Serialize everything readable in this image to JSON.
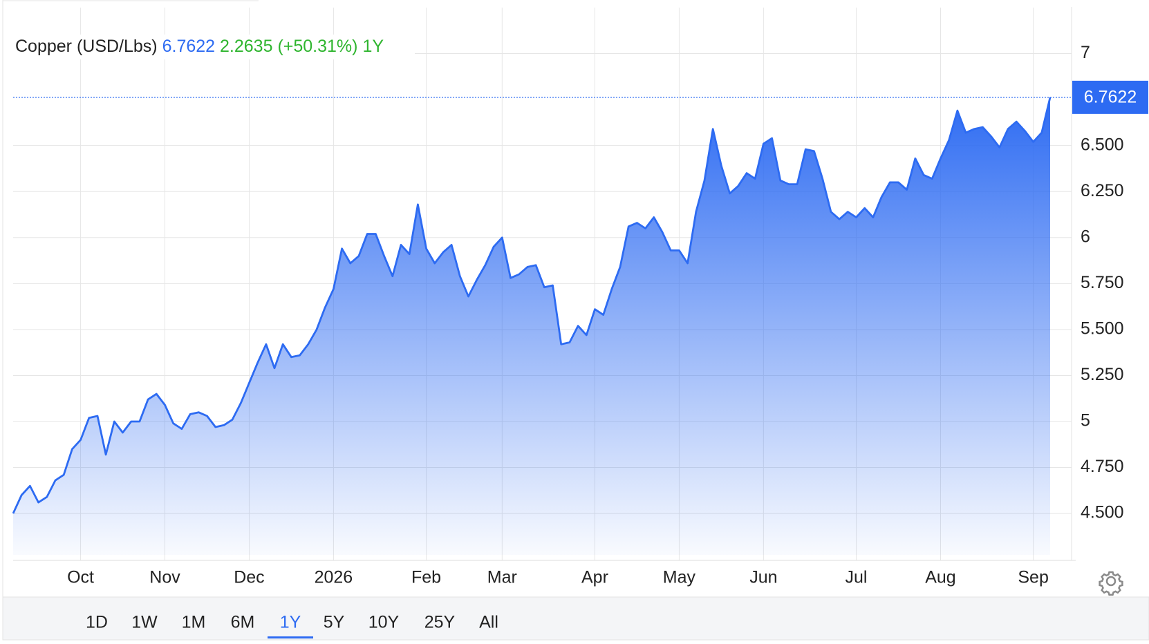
{
  "chart_data": {
    "type": "line",
    "title": "Copper (USD/Lbs)",
    "price_label": "6.7622",
    "change_label": "2.2635",
    "change_pct_label": "(+50.31%)",
    "period_label": "1Y",
    "categories": [
      null,
      null,
      null,
      null,
      null,
      null,
      null,
      null,
      "Oct",
      null,
      null,
      null,
      null,
      null,
      null,
      null,
      null,
      null,
      "Nov",
      null,
      null,
      null,
      null,
      null,
      null,
      null,
      null,
      null,
      "Dec",
      null,
      null,
      null,
      null,
      null,
      null,
      null,
      null,
      null,
      "2026",
      null,
      null,
      null,
      null,
      null,
      null,
      null,
      null,
      null,
      null,
      "Feb",
      null,
      null,
      null,
      null,
      null,
      null,
      null,
      null,
      "Mar",
      null,
      null,
      null,
      null,
      null,
      null,
      null,
      null,
      null,
      null,
      "Apr",
      null,
      null,
      null,
      null,
      null,
      null,
      null,
      null,
      null,
      "May",
      null,
      null,
      null,
      null,
      null,
      null,
      null,
      null,
      null,
      "Jun",
      null,
      null,
      null,
      null,
      null,
      null,
      null,
      null,
      null,
      null,
      "Jul",
      null,
      null,
      null,
      null,
      null,
      null,
      null,
      null,
      null,
      "Aug",
      null,
      null,
      null,
      null,
      null,
      null,
      null,
      null,
      null,
      null,
      "Sep",
      null,
      null
    ],
    "series": [
      {
        "name": "Copper",
        "color": "#2d6bf2",
        "values": [
          4.5,
          4.6,
          4.65,
          4.56,
          4.59,
          4.68,
          4.71,
          4.85,
          4.9,
          5.02,
          5.03,
          4.82,
          5.0,
          4.94,
          5.0,
          5.0,
          5.12,
          5.15,
          5.09,
          4.99,
          4.96,
          5.04,
          5.05,
          5.03,
          4.97,
          4.98,
          5.01,
          5.1,
          5.21,
          5.32,
          5.42,
          5.29,
          5.42,
          5.35,
          5.36,
          5.42,
          5.5,
          5.62,
          5.72,
          5.94,
          5.86,
          5.9,
          6.02,
          6.02,
          5.9,
          5.79,
          5.96,
          5.91,
          6.18,
          5.94,
          5.86,
          5.92,
          5.96,
          5.79,
          5.68,
          5.77,
          5.85,
          5.95,
          6.0,
          5.78,
          5.8,
          5.84,
          5.85,
          5.73,
          5.74,
          5.42,
          5.43,
          5.52,
          5.47,
          5.61,
          5.58,
          5.72,
          5.84,
          6.06,
          6.08,
          6.05,
          6.11,
          6.03,
          5.93,
          5.93,
          5.86,
          6.14,
          6.31,
          6.59,
          6.39,
          6.24,
          6.28,
          6.35,
          6.32,
          6.51,
          6.54,
          6.31,
          6.29,
          6.29,
          6.48,
          6.47,
          6.32,
          6.14,
          6.1,
          6.14,
          6.11,
          6.16,
          6.11,
          6.22,
          6.3,
          6.3,
          6.26,
          6.43,
          6.34,
          6.32,
          6.43,
          6.53,
          6.69,
          6.57,
          6.59,
          6.6,
          6.55,
          6.49,
          6.59,
          6.63,
          6.58,
          6.52,
          6.57,
          6.7622
        ]
      }
    ],
    "ylim": [
      4.245,
      7.25
    ],
    "yticks": [
      {
        "value": 4.5,
        "label": "4.500"
      },
      {
        "value": 4.75,
        "label": "4.750"
      },
      5,
      {
        "value": 5.25,
        "label": "5.250"
      },
      {
        "value": 5.5,
        "label": "5.500"
      },
      {
        "value": 5.75,
        "label": "5.750"
      },
      6,
      {
        "value": 6.25,
        "label": "6.250"
      },
      {
        "value": 6.5,
        "label": "6.500"
      },
      7
    ],
    "grid": true
  },
  "range_buttons": {
    "items": [
      "1D",
      "1W",
      "1M",
      "6M",
      "1Y",
      "5Y",
      "10Y",
      "25Y",
      "All"
    ],
    "selected": "1Y"
  }
}
